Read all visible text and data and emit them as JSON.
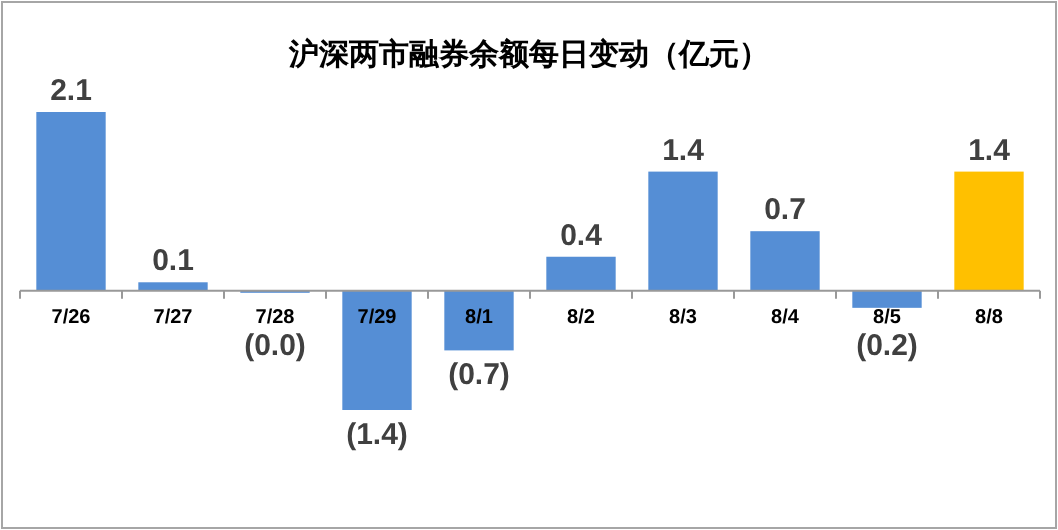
{
  "chart_data": {
    "type": "bar",
    "title": "沪深两市融券余额每日变动（亿元）",
    "categories": [
      "7/26",
      "7/27",
      "7/28",
      "7/29",
      "8/1",
      "8/2",
      "8/3",
      "8/4",
      "8/5",
      "8/8"
    ],
    "values": [
      2.1,
      0.1,
      -0.02,
      -1.4,
      -0.7,
      0.4,
      1.4,
      0.7,
      -0.2,
      1.4
    ],
    "colors": [
      "#558ed5",
      "#558ed5",
      "#558ed5",
      "#558ed5",
      "#558ed5",
      "#558ed5",
      "#558ed5",
      "#558ed5",
      "#558ed5",
      "#ffc000"
    ],
    "value_labels": [
      "2.1",
      "0.1",
      "(0.0)",
      "(1.4)",
      "(0.7)",
      "0.4",
      "1.4",
      "0.7",
      "(0.2)",
      "1.4"
    ]
  }
}
